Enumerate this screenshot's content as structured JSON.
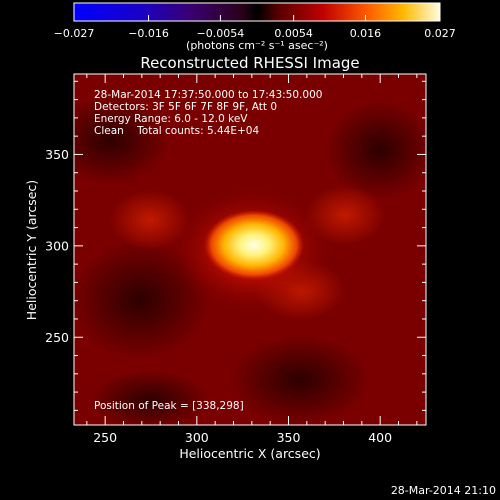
{
  "chart_data": {
    "type": "heatmap",
    "title": "Reconstructed RHESSI Image",
    "xlabel": "Heliocentric X (arcsec)",
    "ylabel": "Heliocentric Y (arcsec)",
    "xlim": [
      233,
      425
    ],
    "ylim": [
      202,
      394
    ],
    "x_ticks": [
      250,
      300,
      350,
      400
    ],
    "y_ticks": [
      250,
      300,
      350
    ],
    "x_tick_labels": [
      "250",
      "300",
      "350",
      "400"
    ],
    "y_tick_labels": [
      "250",
      "300",
      "350"
    ],
    "colorbar": {
      "range": [
        -0.027,
        0.027
      ],
      "tick_values": [
        -0.027,
        -0.016,
        -0.0054,
        0.0054,
        0.016,
        0.027
      ],
      "tick_labels": [
        "−0.027",
        "−0.016",
        "−0.0054",
        "0.0054",
        "0.016",
        "0.027"
      ],
      "unit_label": "(photons cm⁻² s⁻¹ asec⁻²)"
    },
    "annotations": [
      "28-Mar-2014 17:37:50.000 to 17:43:50.000",
      "Detectors: 3F 5F 6F 7F 8F 9F, Att 0",
      "Energy Range: 6.0 - 12.0 keV",
      "Clean    Total counts: 5.44E+04"
    ],
    "peak_label": "Position of Peak = [338,298]",
    "peak": [
      338,
      298
    ]
  },
  "footer_timestamp": "28-Mar-2014 21:10"
}
